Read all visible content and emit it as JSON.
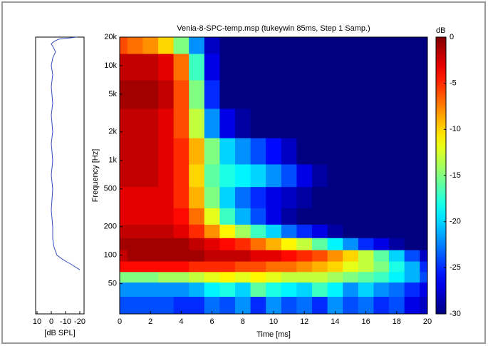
{
  "chart_data": [
    {
      "type": "heatmap",
      "title": "Venia-8-SPC-temp.msp (tukeywin 85ms, Step 1 Samp.)",
      "x_label": "Time [ms]",
      "y_label": "Frequency [Hz]",
      "yscale": "log",
      "x": [
        0,
        1,
        2,
        3,
        4,
        5,
        6,
        7,
        8,
        9,
        10,
        11,
        12,
        13,
        14,
        15,
        16,
        17,
        18,
        19,
        20
      ],
      "y": [
        30,
        45,
        60,
        75,
        100,
        130,
        180,
        250,
        400,
        700,
        1200,
        2500,
        5000,
        10000,
        18000
      ],
      "values": [
        [
          -24,
          -24,
          -24,
          -24,
          -25,
          -25,
          -23,
          -24,
          -22,
          -25,
          -22,
          -24,
          -23,
          -25,
          -22,
          -24,
          -23,
          -25,
          -24,
          -27,
          -28
        ],
        [
          -22,
          -22,
          -22,
          -22,
          -22,
          -21,
          -19,
          -18,
          -20,
          -16,
          -18,
          -19,
          -20,
          -17,
          -19,
          -22,
          -20,
          -22,
          -23,
          -25,
          -27
        ],
        [
          -15,
          -15,
          -15,
          -14,
          -14,
          -13,
          -12,
          -11,
          -12,
          -11,
          -12,
          -13,
          -13,
          -13,
          -14,
          -15,
          -16,
          -17,
          -19,
          -21,
          -24
        ],
        [
          -4,
          -4,
          -4,
          -4,
          -4,
          -5,
          -5,
          -5,
          -6,
          -6,
          -7,
          -7,
          -8,
          -9,
          -10,
          -12,
          -13,
          -15,
          -18,
          -21,
          -25
        ],
        [
          -2,
          -1,
          -1,
          -1,
          -1,
          -1,
          -2,
          -2,
          -2,
          -3,
          -3,
          -4,
          -5,
          -6,
          -8,
          -10,
          -13,
          -16,
          -20,
          -24,
          -28
        ],
        [
          -1,
          -1,
          -1,
          -1,
          -1,
          -2,
          -3,
          -4,
          -5,
          -7,
          -9,
          -11,
          -13,
          -16,
          -19,
          -22,
          -25,
          -27,
          -29,
          -30,
          -30
        ],
        [
          -2,
          -2,
          -2,
          -2,
          -3,
          -5,
          -8,
          -11,
          -14,
          -17,
          -20,
          -23,
          -25,
          -27,
          -29,
          -30,
          -30,
          -30,
          -30,
          -30,
          -30
        ],
        [
          -3,
          -3,
          -3,
          -3,
          -4,
          -7,
          -12,
          -17,
          -21,
          -24,
          -27,
          -29,
          -30,
          -30,
          -30,
          -30,
          -30,
          -30,
          -30,
          -30,
          -30
        ],
        [
          -3,
          -3,
          -3,
          -3,
          -5,
          -9,
          -15,
          -20,
          -23,
          -25,
          -27,
          -28,
          -29,
          -30,
          -30,
          -30,
          -30,
          -30,
          -30,
          -30,
          -30
        ],
        [
          -2,
          -2,
          -2,
          -3,
          -5,
          -10,
          -16,
          -18,
          -19,
          -20,
          -22,
          -24,
          -27,
          -29,
          -30,
          -30,
          -30,
          -30,
          -30,
          -30,
          -30
        ],
        [
          -2,
          -2,
          -2,
          -3,
          -5,
          -9,
          -15,
          -20,
          -22,
          -24,
          -26,
          -28,
          -30,
          -30,
          -30,
          -30,
          -30,
          -30,
          -30,
          -30,
          -30
        ],
        [
          -2,
          -2,
          -2,
          -3,
          -6,
          -13,
          -22,
          -27,
          -29,
          -30,
          -30,
          -30,
          -30,
          -30,
          -30,
          -30,
          -30,
          -30,
          -30,
          -30,
          -30
        ],
        [
          -1,
          -1,
          -1,
          -2,
          -6,
          -15,
          -25,
          -30,
          -30,
          -30,
          -30,
          -30,
          -30,
          -30,
          -30,
          -30,
          -30,
          -30,
          -30,
          -30,
          -30
        ],
        [
          -2,
          -2,
          -2,
          -3,
          -7,
          -17,
          -27,
          -30,
          -30,
          -30,
          -30,
          -30,
          -30,
          -30,
          -30,
          -30,
          -30,
          -30,
          -30,
          -30,
          -30
        ],
        [
          -6,
          -7,
          -8,
          -10,
          -15,
          -22,
          -28,
          -30,
          -30,
          -30,
          -30,
          -30,
          -30,
          -30,
          -30,
          -30,
          -30,
          -30,
          -30,
          -30,
          -30
        ]
      ],
      "xlim": [
        0,
        20
      ],
      "xticks": [
        0,
        2,
        4,
        6,
        8,
        10,
        12,
        14,
        16,
        18,
        20
      ],
      "ylim": [
        24,
        20000
      ],
      "yticks": [
        50,
        100,
        200,
        500,
        {
          "value": 1000,
          "label": "1k"
        },
        {
          "value": 2000,
          "label": "2k"
        },
        {
          "value": 5000,
          "label": "5k"
        },
        {
          "value": 10000,
          "label": "10k"
        },
        {
          "value": 20000,
          "label": "20k"
        }
      ],
      "colorbar": {
        "label": "dB",
        "lim": [
          -30,
          0
        ],
        "ticks": [
          0,
          -5,
          -10,
          -15,
          -20,
          -25,
          -30
        ]
      }
    },
    {
      "type": "line",
      "x_label": "[dB SPL]",
      "yscale": "log",
      "color": "#3a4fc0",
      "y": [
        20000,
        19000,
        18000,
        17000,
        16000,
        14000,
        12000,
        10000,
        8000,
        6000,
        4000,
        3000,
        2000,
        1500,
        1000,
        700,
        500,
        300,
        200,
        150,
        120,
        100,
        90,
        80,
        70
      ],
      "values": [
        -18,
        -5,
        -2,
        0,
        -1,
        -3,
        -1,
        0,
        -1,
        0,
        -1,
        0,
        -1,
        0,
        -1,
        0,
        -1,
        0,
        -1,
        -1,
        -2,
        -4,
        -8,
        -14,
        -20
      ],
      "xlim": [
        11,
        -23
      ],
      "xticks": [
        10,
        0,
        -10,
        -20
      ],
      "ylim": [
        24,
        20000
      ]
    }
  ]
}
